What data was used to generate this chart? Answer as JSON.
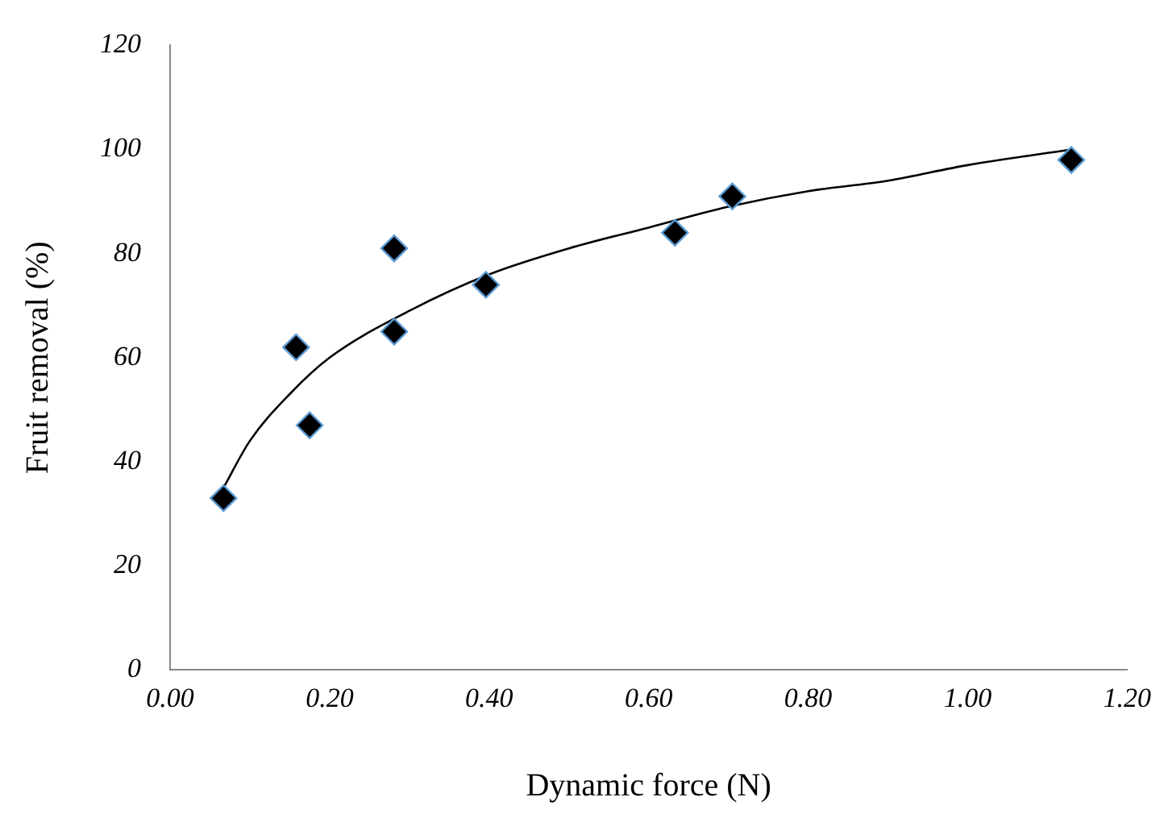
{
  "chart_data": {
    "type": "scatter",
    "xlabel": "Dynamic force (N)",
    "ylabel": "Fruit removal (%)",
    "xlim": [
      0,
      1.2
    ],
    "xticks": [
      {
        "value": 0,
        "label": "0.00"
      },
      {
        "value": 0.2,
        "label": "0.20"
      },
      {
        "value": 0.4,
        "label": "0.40"
      },
      {
        "value": 0.6,
        "label": "0.60"
      },
      {
        "value": 0.8,
        "label": "0.80"
      },
      {
        "value": 1,
        "label": "1.00"
      },
      {
        "value": 1.2,
        "label": "1.20"
      }
    ],
    "ylim": [
      0,
      120
    ],
    "yticks": [
      0,
      20,
      40,
      60,
      80,
      100,
      120
    ],
    "grid": false,
    "legend": false,
    "marker": "diamond",
    "series": [
      {
        "color": "#000000",
        "x": [
          0.067,
          0.158,
          0.175,
          0.281,
          0.281,
          0.396,
          0.633,
          0.705,
          1.13
        ],
        "values": [
          33,
          62,
          47,
          81,
          65,
          74,
          84,
          91,
          98
        ]
      },
      {
        "type": "line",
        "color": "#000000",
        "marker": "none",
        "line_style": "solid",
        "x": [
          0.067,
          0.1,
          0.15,
          0.2,
          0.3,
          0.4,
          0.5,
          0.6,
          0.7,
          0.8,
          0.9,
          1.0,
          1.13
        ],
        "values": [
          35,
          44,
          53,
          60,
          69,
          76,
          81,
          85,
          89,
          92,
          94,
          97,
          100
        ]
      }
    ]
  }
}
